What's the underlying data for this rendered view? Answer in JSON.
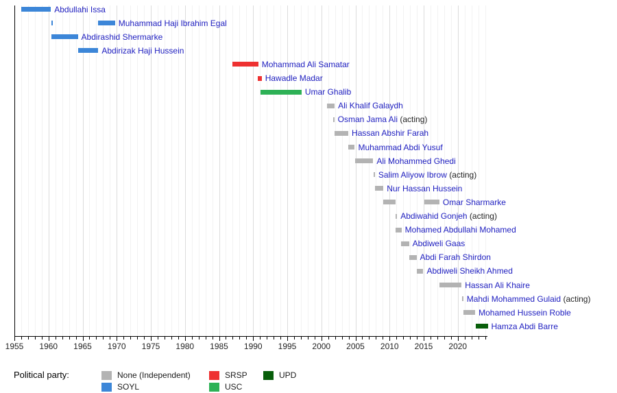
{
  "chart_data": {
    "type": "timeline",
    "title": "",
    "x_axis": {
      "start_year": 1955,
      "end_year": 2024,
      "tick_interval_years": 1,
      "label_years": [
        1955,
        1960,
        1965,
        1970,
        1975,
        1980,
        1985,
        1990,
        1995,
        2000,
        2005,
        2010,
        2015,
        2020
      ],
      "grid": "yearly, darker every 5 years"
    },
    "parties": {
      "None": "#b3b3b3",
      "SOYL": "#3c86d8",
      "SRSP": "#ee3131",
      "USC": "#2eb156",
      "UPD": "#085e0a"
    },
    "people": [
      {
        "name": "Abdullahi Issa",
        "suffix": "",
        "party": "SOYL",
        "terms": [
          [
            1956.0,
            1960.35
          ]
        ]
      },
      {
        "name": "Muhammad Haji Ibrahim Egal",
        "suffix": "",
        "party": "SOYL",
        "terms": [
          [
            1960.4,
            1960.6
          ],
          [
            1967.3,
            1969.75
          ]
        ]
      },
      {
        "name": "Abdirashid Shermarke",
        "suffix": "",
        "party": "SOYL",
        "terms": [
          [
            1960.4,
            1964.3
          ]
        ]
      },
      {
        "name": "Abdirizak Haji Hussein",
        "suffix": "",
        "party": "SOYL",
        "terms": [
          [
            1964.3,
            1967.3
          ]
        ]
      },
      {
        "name": "Mohammad Ali Samatar",
        "suffix": "",
        "party": "SRSP",
        "terms": [
          [
            1987.0,
            1990.75
          ]
        ]
      },
      {
        "name": "Hawadle Madar",
        "suffix": "",
        "party": "SRSP",
        "terms": [
          [
            1990.7,
            1991.25
          ]
        ]
      },
      {
        "name": "Umar Ghalib",
        "suffix": "",
        "party": "USC",
        "terms": [
          [
            1991.1,
            1997.1
          ]
        ]
      },
      {
        "name": "Ali Khalif Galaydh",
        "suffix": "",
        "party": "None",
        "terms": [
          [
            2000.85,
            2001.95
          ]
        ]
      },
      {
        "name": "Osman Jama Ali",
        "suffix": " (acting)",
        "party": "None",
        "terms": [
          [
            2001.7,
            2001.9
          ]
        ]
      },
      {
        "name": "Hassan Abshir Farah",
        "suffix": "",
        "party": "None",
        "terms": [
          [
            2001.95,
            2003.95
          ]
        ]
      },
      {
        "name": "Muhammad Abdi Yusuf",
        "suffix": "",
        "party": "None",
        "terms": [
          [
            2003.95,
            2004.9
          ]
        ]
      },
      {
        "name": "Ali Mohammed Ghedi",
        "suffix": "",
        "party": "None",
        "terms": [
          [
            2004.9,
            2007.6
          ]
        ]
      },
      {
        "name": "Salim Aliyow Ibrow",
        "suffix": " (acting)",
        "party": "None",
        "terms": [
          [
            2007.65,
            2007.85
          ]
        ]
      },
      {
        "name": "Nur Hassan Hussein",
        "suffix": "",
        "party": "None",
        "terms": [
          [
            2007.9,
            2009.1
          ]
        ]
      },
      {
        "name": "Omar Sharmarke",
        "suffix": "",
        "party": "None",
        "terms": [
          [
            2009.1,
            2010.85
          ],
          [
            2015.1,
            2017.3
          ]
        ]
      },
      {
        "name": "Abdiwahid Gonjeh",
        "suffix": " (acting)",
        "party": "None",
        "terms": [
          [
            2010.9,
            2011.1
          ]
        ]
      },
      {
        "name": "Mohamed Abdullahi Mohamed",
        "suffix": "",
        "party": "None",
        "terms": [
          [
            2010.9,
            2011.75
          ]
        ]
      },
      {
        "name": "Abdiweli Gaas",
        "suffix": "",
        "party": "None",
        "terms": [
          [
            2011.65,
            2012.85
          ]
        ]
      },
      {
        "name": "Abdi Farah Shirdon",
        "suffix": "",
        "party": "None",
        "terms": [
          [
            2012.85,
            2013.95
          ]
        ]
      },
      {
        "name": "Abdiweli Sheikh Ahmed",
        "suffix": "",
        "party": "None",
        "terms": [
          [
            2013.95,
            2014.95
          ]
        ]
      },
      {
        "name": "Hassan Ali Khaire",
        "suffix": "",
        "party": "None",
        "terms": [
          [
            2017.3,
            2020.55
          ]
        ]
      },
      {
        "name": "Mahdi Mohammed Gulaid",
        "suffix": " (acting)",
        "party": "None",
        "terms": [
          [
            2020.6,
            2020.8
          ]
        ]
      },
      {
        "name": "Mohamed Hussein Roble",
        "suffix": "",
        "party": "None",
        "terms": [
          [
            2020.85,
            2022.55
          ]
        ]
      },
      {
        "name": "Hamza Abdi Barre",
        "suffix": "",
        "party": "UPD",
        "terms": [
          [
            2022.65,
            2024.4
          ]
        ]
      }
    ]
  },
  "legend": {
    "title": "Political party:",
    "entries": [
      {
        "label": "None (Independent)",
        "party": "None",
        "color": "#b3b3b3"
      },
      {
        "label": "SOYL",
        "party": "SOYL",
        "color": "#3c86d8"
      },
      {
        "label": "SRSP",
        "party": "SRSP",
        "color": "#ee3131"
      },
      {
        "label": "USC",
        "party": "USC",
        "color": "#2eb156"
      },
      {
        "label": "UPD",
        "party": "UPD",
        "color": "#085e0a"
      }
    ]
  },
  "colors": {
    "name_text": "#2020c0",
    "acting_text": "#222222",
    "tick_label": "#222222",
    "axis": "#000000",
    "grid_minor": "#f2f2f2",
    "grid_major": "#dcdcdc"
  }
}
